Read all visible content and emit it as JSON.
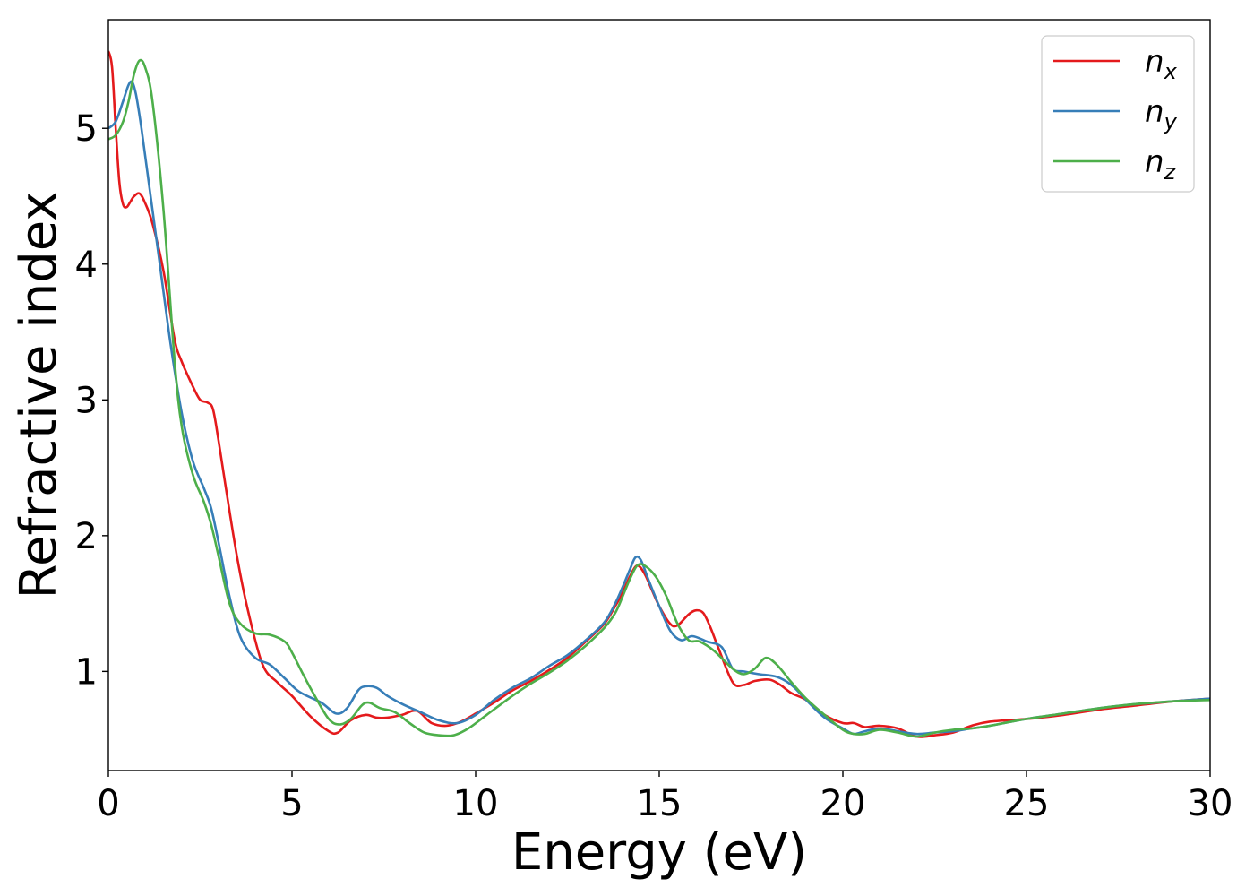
{
  "chart_data": {
    "type": "line",
    "xlabel": "Energy (eV)",
    "ylabel": "Refractive index",
    "xlim": [
      0,
      30
    ],
    "ylim": [
      0.27,
      5.8
    ],
    "xticks": [
      0,
      5,
      10,
      15,
      20,
      25,
      30
    ],
    "xtick_labels": [
      "0",
      "5",
      "10",
      "15",
      "20",
      "25",
      "30"
    ],
    "yticks": [
      1,
      2,
      3,
      4,
      5
    ],
    "ytick_labels": [
      "1",
      "2",
      "3",
      "4",
      "5"
    ],
    "grid": false,
    "legend_position": "top-right",
    "series": [
      {
        "name": "n",
        "subscript": "x",
        "color": "#e41a1c",
        "x": [
          0,
          0.1,
          0.2,
          0.3,
          0.4,
          0.5,
          0.6,
          0.7,
          0.85,
          1.0,
          1.2,
          1.5,
          1.8,
          2.0,
          2.3,
          2.5,
          2.7,
          2.85,
          3.0,
          3.2,
          3.5,
          3.8,
          4.2,
          4.6,
          5.0,
          5.5,
          6.0,
          6.25,
          6.6,
          7.0,
          7.3,
          7.6,
          8.0,
          8.4,
          8.8,
          9.2,
          9.6,
          10.0,
          10.5,
          11.0,
          11.5,
          12.0,
          12.5,
          13.0,
          13.5,
          13.8,
          14.0,
          14.2,
          14.4,
          14.6,
          14.8,
          15.0,
          15.3,
          15.5,
          15.8,
          16.0,
          16.2,
          16.4,
          16.6,
          17.0,
          17.3,
          17.6,
          18.0,
          18.3,
          18.6,
          19.0,
          19.5,
          20.0,
          20.3,
          20.6,
          21.0,
          21.5,
          22.0,
          22.5,
          23.0,
          23.5,
          24.0,
          25.0,
          26.0,
          27.0,
          28.0,
          29.0,
          30.0
        ],
        "y": [
          5.57,
          5.45,
          5.0,
          4.6,
          4.44,
          4.42,
          4.46,
          4.5,
          4.52,
          4.45,
          4.3,
          3.95,
          3.45,
          3.28,
          3.1,
          3.0,
          2.98,
          2.93,
          2.7,
          2.35,
          1.85,
          1.45,
          1.05,
          0.92,
          0.82,
          0.67,
          0.56,
          0.55,
          0.64,
          0.68,
          0.66,
          0.66,
          0.68,
          0.71,
          0.62,
          0.6,
          0.63,
          0.69,
          0.77,
          0.86,
          0.93,
          1.01,
          1.1,
          1.22,
          1.35,
          1.48,
          1.58,
          1.7,
          1.78,
          1.72,
          1.6,
          1.48,
          1.35,
          1.34,
          1.42,
          1.45,
          1.43,
          1.32,
          1.18,
          0.92,
          0.9,
          0.93,
          0.94,
          0.9,
          0.84,
          0.79,
          0.68,
          0.62,
          0.62,
          0.59,
          0.6,
          0.58,
          0.52,
          0.53,
          0.55,
          0.6,
          0.63,
          0.65,
          0.68,
          0.72,
          0.75,
          0.78,
          0.8
        ]
      },
      {
        "name": "n",
        "subscript": "y",
        "color": "#377eb8",
        "x": [
          0,
          0.2,
          0.4,
          0.55,
          0.65,
          0.75,
          0.9,
          1.1,
          1.4,
          1.7,
          2.0,
          2.3,
          2.6,
          2.8,
          3.0,
          3.3,
          3.6,
          4.0,
          4.4,
          4.8,
          5.2,
          5.8,
          6.2,
          6.5,
          6.8,
          7.0,
          7.3,
          7.6,
          8.0,
          8.5,
          9.0,
          9.5,
          10.0,
          10.5,
          11.0,
          11.5,
          12.0,
          12.5,
          13.0,
          13.5,
          13.8,
          14.0,
          14.2,
          14.35,
          14.5,
          14.7,
          15.0,
          15.3,
          15.6,
          15.9,
          16.3,
          16.7,
          17.0,
          17.3,
          17.7,
          18.2,
          18.6,
          19.0,
          19.5,
          20.0,
          20.3,
          20.6,
          21.0,
          21.5,
          22.0,
          22.5,
          23.0,
          23.5,
          24.0,
          25.0,
          26.0,
          27.0,
          28.0,
          29.0,
          30.0
        ],
        "y": [
          5.0,
          5.05,
          5.2,
          5.32,
          5.34,
          5.25,
          5.0,
          4.6,
          4.0,
          3.4,
          2.9,
          2.55,
          2.35,
          2.2,
          1.95,
          1.55,
          1.25,
          1.1,
          1.05,
          0.95,
          0.85,
          0.77,
          0.69,
          0.73,
          0.86,
          0.89,
          0.88,
          0.82,
          0.76,
          0.7,
          0.64,
          0.62,
          0.68,
          0.79,
          0.88,
          0.95,
          1.04,
          1.12,
          1.23,
          1.36,
          1.5,
          1.62,
          1.75,
          1.84,
          1.82,
          1.68,
          1.48,
          1.3,
          1.23,
          1.26,
          1.22,
          1.18,
          1.02,
          1.0,
          0.98,
          0.96,
          0.9,
          0.79,
          0.66,
          0.58,
          0.54,
          0.56,
          0.58,
          0.56,
          0.54,
          0.55,
          0.56,
          0.58,
          0.6,
          0.65,
          0.69,
          0.73,
          0.76,
          0.78,
          0.8
        ]
      },
      {
        "name": "n",
        "subscript": "z",
        "color": "#4daf4a",
        "x": [
          0,
          0.2,
          0.4,
          0.55,
          0.7,
          0.85,
          1.0,
          1.2,
          1.5,
          1.8,
          2.0,
          2.3,
          2.6,
          2.8,
          3.0,
          3.3,
          3.6,
          4.0,
          4.4,
          4.8,
          5.0,
          5.3,
          5.6,
          6.0,
          6.3,
          6.6,
          6.9,
          7.1,
          7.4,
          7.8,
          8.2,
          8.6,
          9.0,
          9.4,
          9.8,
          10.3,
          11.0,
          11.5,
          12.0,
          12.5,
          13.0,
          13.5,
          13.8,
          14.0,
          14.2,
          14.4,
          14.6,
          14.9,
          15.2,
          15.5,
          15.8,
          16.1,
          16.5,
          17.0,
          17.3,
          17.6,
          17.9,
          18.2,
          18.6,
          19.0,
          19.5,
          20.0,
          20.3,
          20.6,
          21.0,
          21.5,
          22.0,
          22.5,
          23.0,
          23.5,
          24.0,
          25.0,
          26.0,
          27.0,
          28.0,
          29.0,
          30.0
        ],
        "y": [
          4.92,
          4.95,
          5.05,
          5.2,
          5.4,
          5.5,
          5.45,
          5.2,
          4.4,
          3.3,
          2.8,
          2.45,
          2.25,
          2.08,
          1.85,
          1.5,
          1.35,
          1.28,
          1.27,
          1.22,
          1.14,
          0.98,
          0.83,
          0.65,
          0.61,
          0.65,
          0.75,
          0.77,
          0.73,
          0.7,
          0.62,
          0.55,
          0.53,
          0.53,
          0.58,
          0.68,
          0.82,
          0.91,
          0.99,
          1.08,
          1.19,
          1.32,
          1.43,
          1.55,
          1.68,
          1.78,
          1.78,
          1.7,
          1.55,
          1.35,
          1.23,
          1.22,
          1.15,
          1.02,
          0.98,
          1.02,
          1.1,
          1.05,
          0.92,
          0.8,
          0.68,
          0.57,
          0.54,
          0.54,
          0.57,
          0.55,
          0.52,
          0.55,
          0.57,
          0.58,
          0.6,
          0.65,
          0.69,
          0.73,
          0.76,
          0.78,
          0.79
        ]
      }
    ]
  }
}
